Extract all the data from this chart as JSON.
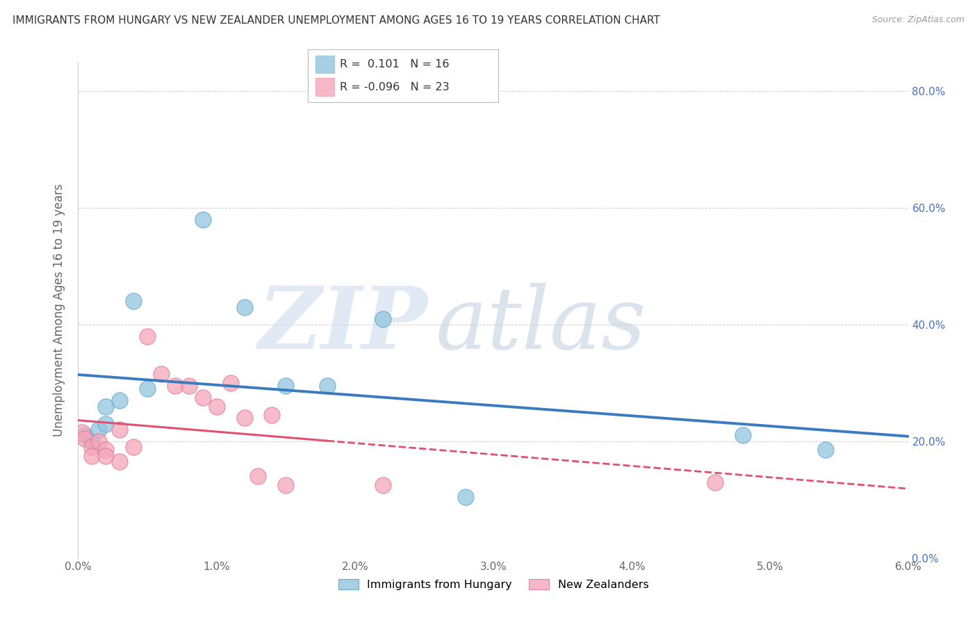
{
  "title": "IMMIGRANTS FROM HUNGARY VS NEW ZEALANDER UNEMPLOYMENT AMONG AGES 16 TO 19 YEARS CORRELATION CHART",
  "source": "Source: ZipAtlas.com",
  "ylabel": "Unemployment Among Ages 16 to 19 years",
  "xlim": [
    0.0,
    0.06
  ],
  "ylim": [
    0.0,
    0.85
  ],
  "xticks": [
    0.0,
    0.01,
    0.02,
    0.03,
    0.04,
    0.05,
    0.06
  ],
  "xticklabels": [
    "0.0%",
    "1.0%",
    "2.0%",
    "3.0%",
    "4.0%",
    "5.0%",
    "6.0%"
  ],
  "ytick_positions": [
    0.0,
    0.2,
    0.4,
    0.6,
    0.8
  ],
  "ytick_labels_right": [
    "0.0%",
    "20.0%",
    "40.0%",
    "60.0%",
    "80.0%"
  ],
  "blue_color": "#92c5de",
  "pink_color": "#f4a6b8",
  "blue_edge_color": "#5a9fc8",
  "pink_edge_color": "#e07090",
  "blue_line_color": "#3a7abf",
  "pink_line_color": "#e05070",
  "legend_r_blue": "R =  0.101",
  "legend_n_blue": "N = 16",
  "legend_r_pink": "R = -0.096",
  "legend_n_pink": "N = 23",
  "legend_blue_color": "#92c5de",
  "legend_pink_color": "#f4a6b8",
  "blue_label": "Immigrants from Hungary",
  "pink_label": "New Zealanders",
  "watermark_zip_color": "#c8d8e8",
  "watermark_atlas_color": "#b8c8d8",
  "background_color": "#ffffff",
  "grid_color": "#d0d0d0",
  "blue_x": [
    0.0005,
    0.001,
    0.0015,
    0.002,
    0.002,
    0.003,
    0.004,
    0.005,
    0.009,
    0.012,
    0.015,
    0.018,
    0.022,
    0.028,
    0.048,
    0.054
  ],
  "blue_y": [
    0.21,
    0.2,
    0.22,
    0.26,
    0.23,
    0.27,
    0.44,
    0.29,
    0.58,
    0.43,
    0.295,
    0.295,
    0.41,
    0.105,
    0.21,
    0.185
  ],
  "pink_x": [
    0.0003,
    0.0005,
    0.001,
    0.001,
    0.0015,
    0.002,
    0.002,
    0.003,
    0.003,
    0.004,
    0.005,
    0.006,
    0.007,
    0.008,
    0.009,
    0.01,
    0.011,
    0.012,
    0.013,
    0.014,
    0.015,
    0.022,
    0.046
  ],
  "pink_y": [
    0.215,
    0.205,
    0.19,
    0.175,
    0.2,
    0.185,
    0.175,
    0.22,
    0.165,
    0.19,
    0.38,
    0.315,
    0.295,
    0.295,
    0.275,
    0.26,
    0.3,
    0.24,
    0.14,
    0.245,
    0.125,
    0.125,
    0.13
  ]
}
